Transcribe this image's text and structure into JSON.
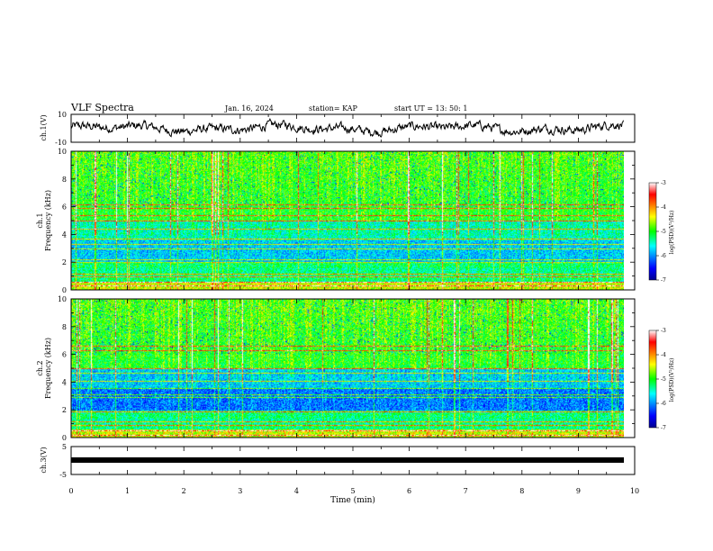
{
  "header": {
    "title": "VLF Spectra",
    "date": "Jan. 16, 2024",
    "station": "station= KAP",
    "start": "start UT =  13: 50: 1"
  },
  "chart_data": [
    {
      "type": "line",
      "name": "ch1-waveform",
      "ylabel": "ch.1(V)",
      "ylim": [
        -10,
        10
      ],
      "ytick_labels": [
        "10",
        "-10"
      ],
      "xlim": [
        0,
        10
      ]
    },
    {
      "type": "heatmap",
      "name": "ch1-spectrogram",
      "ylabel_line1": "ch.1",
      "ylabel_line2": "Frequency (kHz)",
      "ylim": [
        0,
        10
      ],
      "ytick_labels": [
        "0",
        "2",
        "4",
        "6",
        "8",
        "10"
      ],
      "xlim": [
        0,
        10
      ],
      "colorbar": {
        "label": "log(PSD)(V²/Hz)",
        "range": [
          -7,
          -3
        ],
        "tick_labels": [
          "-3",
          "-4",
          "-5",
          "-6",
          "-7"
        ]
      }
    },
    {
      "type": "heatmap",
      "name": "ch2-spectrogram",
      "ylabel_line1": "ch.2",
      "ylabel_line2": "Frequency (kHz)",
      "ylim": [
        0,
        10
      ],
      "ytick_labels": [
        "0",
        "2",
        "4",
        "6",
        "8",
        "10"
      ],
      "xlim": [
        0,
        10
      ],
      "colorbar": {
        "label": "log(PSD)(V²/Hz)",
        "range": [
          -7,
          -3
        ],
        "tick_labels": [
          "-3",
          "-4",
          "-5",
          "-6",
          "-7"
        ]
      }
    },
    {
      "type": "line",
      "name": "ch3-waveform",
      "ylabel": "ch.3(V)",
      "ylim": [
        -5,
        5
      ],
      "ytick_labels": [
        "5",
        "-5"
      ],
      "xlim": [
        0,
        10
      ]
    }
  ],
  "xaxis": {
    "label": "Time (min)",
    "tick_labels": [
      "0",
      "1",
      "2",
      "3",
      "4",
      "5",
      "6",
      "7",
      "8",
      "9",
      "10"
    ]
  },
  "colors": {
    "jet_stops": [
      "#00008f",
      "#0000ff",
      "#00ffff",
      "#00ff00",
      "#ffff00",
      "#ff0000",
      "#ffffff"
    ]
  }
}
